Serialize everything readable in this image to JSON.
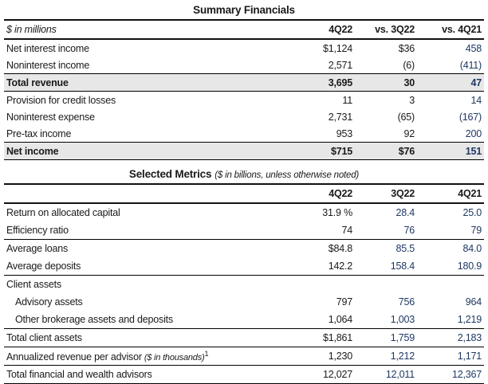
{
  "colors": {
    "navy_comparison_text": "#1F3864",
    "shaded_row_background": "#E7E7E7",
    "body_text": "#1A1A1A"
  },
  "table1": {
    "title": "Summary Financials",
    "unit_note": "$ in millions",
    "columns": [
      "4Q22",
      "vs. 3Q22",
      "vs. 4Q21"
    ],
    "rows": [
      {
        "label": "Net interest income",
        "values": [
          "$1,124",
          "$36",
          "458"
        ]
      },
      {
        "label": "Noninterest income",
        "values": [
          "2,571",
          "(6)",
          "(411)"
        ]
      },
      {
        "label": "Total revenue",
        "values": [
          "3,695",
          "30",
          "47"
        ]
      },
      {
        "label": "Provision for credit losses",
        "values": [
          "11",
          "3",
          "14"
        ]
      },
      {
        "label": "Noninterest expense",
        "values": [
          "2,731",
          "(65)",
          "(167)"
        ]
      },
      {
        "label": "Pre-tax income",
        "values": [
          "953",
          "92",
          "200"
        ]
      },
      {
        "label": "Net income",
        "values": [
          "$715",
          "$76",
          "151"
        ]
      }
    ]
  },
  "table2": {
    "title": "Selected Metrics",
    "title_note": "($ in billions, unless otherwise noted)",
    "columns": [
      "4Q22",
      "3Q22",
      "4Q21"
    ],
    "rows": [
      {
        "label": "Return on allocated capital",
        "values": [
          "31.9 %",
          "28.4",
          "25.0"
        ]
      },
      {
        "label": "Efficiency ratio",
        "values": [
          "74",
          "76",
          "79"
        ]
      },
      {
        "label": "Average loans",
        "values": [
          "$84.8",
          "85.5",
          "84.0"
        ]
      },
      {
        "label": "Average deposits",
        "values": [
          "142.2",
          "158.4",
          "180.9"
        ]
      },
      {
        "label": "Client assets",
        "values": [
          "",
          "",
          ""
        ]
      },
      {
        "label": "Advisory assets",
        "values": [
          "797",
          "756",
          "964"
        ]
      },
      {
        "label": "Other brokerage assets and deposits",
        "values": [
          "1,064",
          "1,003",
          "1,219"
        ]
      },
      {
        "label": "Total client assets",
        "values": [
          "$1,861",
          "1,759",
          "2,183"
        ]
      },
      {
        "label": "Annualized revenue per advisor",
        "note": "($ in thousands)",
        "sup": "1",
        "values": [
          "1,230",
          "1,212",
          "1,171"
        ]
      },
      {
        "label": "Total financial and wealth advisors",
        "values": [
          "12,027",
          "12,011",
          "12,367"
        ]
      }
    ]
  }
}
